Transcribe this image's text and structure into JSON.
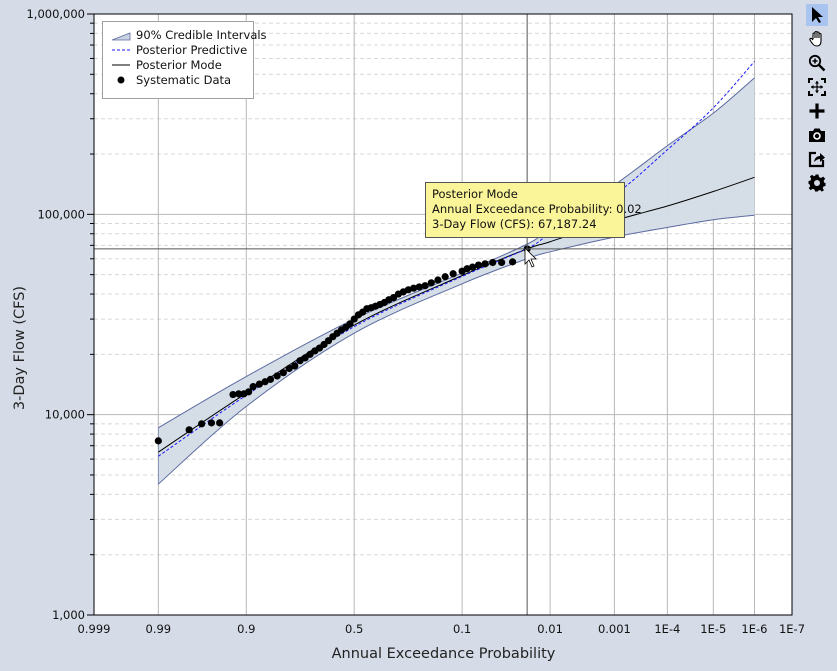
{
  "chart_data": {
    "type": "line",
    "title": "",
    "xlabel": "Annual Exceedance Probability",
    "ylabel": "3-Day Flow (CFS)",
    "x_scale": "normal-probability (reversed)",
    "y_scale": "log",
    "ylim": [
      1000,
      1000000
    ],
    "xlim": [
      0.999,
      1e-07
    ],
    "grid": true,
    "legend_position": "upper-left",
    "x_ticks": [
      {
        "value": 0.999,
        "label": "0.999"
      },
      {
        "value": 0.99,
        "label": "0.99"
      },
      {
        "value": 0.9,
        "label": "0.9"
      },
      {
        "value": 0.5,
        "label": "0.5"
      },
      {
        "value": 0.1,
        "label": "0.1"
      },
      {
        "value": 0.01,
        "label": "0.01"
      },
      {
        "value": 0.001,
        "label": "0.001"
      },
      {
        "value": 0.0001,
        "label": "1E-4"
      },
      {
        "value": 1e-05,
        "label": "1E-5"
      },
      {
        "value": 1e-06,
        "label": "1E-6"
      },
      {
        "value": 1e-07,
        "label": "1E-7"
      }
    ],
    "y_ticks": [
      {
        "value": 1000,
        "label": "1,000"
      },
      {
        "value": 10000,
        "label": "10,000"
      },
      {
        "value": 100000,
        "label": "100,000"
      },
      {
        "value": 1000000,
        "label": "1,000,000"
      }
    ],
    "legend": [
      {
        "name": "90% Credible Intervals",
        "kind": "band",
        "color": "#d3dce6",
        "edge": "#5b6aa0"
      },
      {
        "name": "Posterior Predictive",
        "kind": "dashed-line",
        "color": "#1a1aff"
      },
      {
        "name": "Posterior Mode",
        "kind": "line",
        "color": "#000000"
      },
      {
        "name": "Systematic Data",
        "kind": "marker",
        "color": "#000000"
      }
    ],
    "series": [
      {
        "name": "90% Credible Intervals (upper)",
        "x": [
          0.99,
          0.9,
          0.5,
          0.1,
          0.02,
          0.01,
          0.001,
          0.0001,
          1e-05,
          1e-06
        ],
        "values": [
          8600,
          15500,
          30000,
          51000,
          71000,
          85000,
          140000,
          220000,
          320000,
          480000
        ]
      },
      {
        "name": "90% Credible Intervals (lower)",
        "x": [
          0.99,
          0.9,
          0.5,
          0.1,
          0.02,
          0.01,
          0.001,
          0.0001,
          1e-05,
          1e-06
        ],
        "values": [
          4500,
          11000,
          25500,
          45000,
          60000,
          65000,
          77000,
          86000,
          94000,
          99000
        ]
      },
      {
        "name": "Posterior Predictive",
        "x": [
          0.99,
          0.9,
          0.5,
          0.1,
          0.02,
          0.01,
          0.001,
          0.0001,
          1e-05,
          1e-06
        ],
        "values": [
          6200,
          12500,
          27500,
          49000,
          67500,
          80000,
          125000,
          210000,
          340000,
          580000
        ]
      },
      {
        "name": "Posterior Mode",
        "x": [
          0.99,
          0.9,
          0.5,
          0.1,
          0.02,
          0.01,
          0.001,
          0.0001,
          1e-05,
          1e-06
        ],
        "values": [
          6500,
          12800,
          28000,
          49500,
          67187.24,
          73000,
          93000,
          110000,
          130000,
          153000
        ]
      },
      {
        "name": "Systematic Data",
        "x": [
          0.99,
          0.975,
          0.965,
          0.955,
          0.945,
          0.925,
          0.915,
          0.905,
          0.895,
          0.885,
          0.87,
          0.855,
          0.84,
          0.82,
          0.8,
          0.78,
          0.76,
          0.74,
          0.72,
          0.7,
          0.68,
          0.66,
          0.64,
          0.62,
          0.6,
          0.58,
          0.56,
          0.54,
          0.52,
          0.5,
          0.48,
          0.46,
          0.44,
          0.42,
          0.4,
          0.38,
          0.36,
          0.34,
          0.32,
          0.3,
          0.28,
          0.26,
          0.24,
          0.22,
          0.2,
          0.18,
          0.16,
          0.14,
          0.12,
          0.1,
          0.09,
          0.08,
          0.07,
          0.06,
          0.05,
          0.04,
          0.03,
          0.02
        ],
        "values": [
          7400,
          8400,
          9000,
          9100,
          9100,
          12600,
          12700,
          12700,
          13000,
          13800,
          14200,
          14600,
          15000,
          15600,
          16200,
          17000,
          17500,
          18600,
          19200,
          20000,
          20800,
          21500,
          22400,
          23400,
          24500,
          25500,
          26500,
          27300,
          28400,
          30000,
          31500,
          32500,
          33800,
          34200,
          34800,
          35500,
          36300,
          37500,
          38400,
          40000,
          41000,
          42000,
          42800,
          43400,
          44000,
          45500,
          47000,
          48800,
          50500,
          52000,
          53500,
          54500,
          55800,
          56600,
          57500,
          57500,
          57900,
          67187.24
        ]
      }
    ],
    "annotations": [
      {
        "type": "crosshair",
        "x": 0.02,
        "y": 67187.24
      }
    ]
  },
  "tooltip": {
    "title": "Posterior Mode",
    "line1": "Annual Exceedance Probability: 0.02",
    "line2": "3-Day Flow (CFS): 67,187.24"
  },
  "toolbar": {
    "items": [
      {
        "name": "select",
        "icon": "pointer-icon",
        "active": true
      },
      {
        "name": "pan",
        "icon": "hand-icon",
        "active": false
      },
      {
        "name": "zoom",
        "icon": "zoom-in-icon",
        "active": false
      },
      {
        "name": "zoom-extents",
        "icon": "fit-extents-icon",
        "active": false
      },
      {
        "name": "add",
        "icon": "plus-icon",
        "active": false
      },
      {
        "name": "screenshot",
        "icon": "camera-icon",
        "active": false
      },
      {
        "name": "export",
        "icon": "export-icon",
        "active": false
      },
      {
        "name": "settings",
        "icon": "gear-icon",
        "active": false
      }
    ]
  },
  "colors": {
    "background": "#d5dce8",
    "plot_bg": "#ffffff",
    "band_fill": "#d3dce6",
    "band_edge": "#5b6aa0",
    "predictive": "#1a1aff",
    "mode": "#000000",
    "tooltip_bg": "#fbf59a"
  }
}
